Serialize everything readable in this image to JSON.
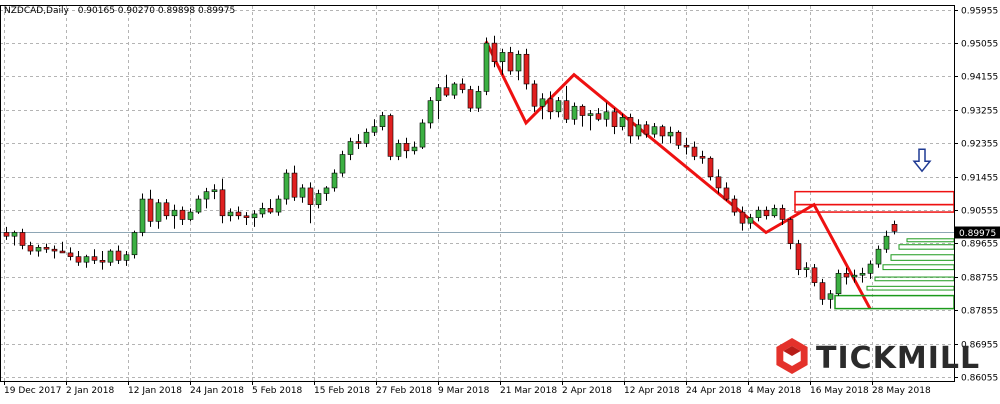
{
  "header": {
    "symbol": "NZDCAD,Daily",
    "ohlc": "0.90165 0.90270 0.89898 0.89975"
  },
  "logo": {
    "text": "TICKMILL"
  },
  "colors": {
    "bull": "#3cb043",
    "bear": "#e02020",
    "wick": "#000000",
    "grid": "#b4b4b4",
    "pattern": "#ee1111",
    "support": "#1c9a1c",
    "arrow": "#1f3a93",
    "price_line": "#8ea6b5"
  },
  "chart_data": {
    "type": "candlestick",
    "title": "",
    "ylim": [
      0.8595,
      0.9605
    ],
    "y_ticks": [
      "0.95955",
      "0.95055",
      "0.94155",
      "0.93255",
      "0.92355",
      "0.91455",
      "0.90555",
      "0.89655",
      "0.88755",
      "0.87855",
      "0.86955",
      "0.86055"
    ],
    "x_ticks": [
      "19 Dec 2017",
      "2 Jan 2018",
      "12 Jan 2018",
      "24 Jan 2018",
      "5 Feb 2018",
      "15 Feb 2018",
      "27 Feb 2018",
      "9 Mar 2018",
      "21 Mar 2018",
      "2 Apr 2018",
      "12 Apr 2018",
      "24 Apr 2018",
      "4 May 2018",
      "16 May 2018",
      "28 May 2018"
    ],
    "last_price": "0.89975",
    "candles": [
      {
        "o": 0.8995,
        "h": 0.901,
        "l": 0.8975,
        "c": 0.8985
      },
      {
        "o": 0.8985,
        "h": 0.9,
        "l": 0.896,
        "c": 0.8995
      },
      {
        "o": 0.8995,
        "h": 0.9005,
        "l": 0.895,
        "c": 0.896
      },
      {
        "o": 0.896,
        "h": 0.897,
        "l": 0.8935,
        "c": 0.8945
      },
      {
        "o": 0.8945,
        "h": 0.8962,
        "l": 0.893,
        "c": 0.8955
      },
      {
        "o": 0.8955,
        "h": 0.8965,
        "l": 0.894,
        "c": 0.895
      },
      {
        "o": 0.895,
        "h": 0.896,
        "l": 0.8925,
        "c": 0.8945
      },
      {
        "o": 0.8945,
        "h": 0.897,
        "l": 0.894,
        "c": 0.894
      },
      {
        "o": 0.894,
        "h": 0.8955,
        "l": 0.892,
        "c": 0.893
      },
      {
        "o": 0.893,
        "h": 0.8945,
        "l": 0.8905,
        "c": 0.8915
      },
      {
        "o": 0.8915,
        "h": 0.8935,
        "l": 0.89,
        "c": 0.893
      },
      {
        "o": 0.893,
        "h": 0.895,
        "l": 0.891,
        "c": 0.892
      },
      {
        "o": 0.892,
        "h": 0.8945,
        "l": 0.8895,
        "c": 0.8915
      },
      {
        "o": 0.8915,
        "h": 0.895,
        "l": 0.8905,
        "c": 0.8945
      },
      {
        "o": 0.8945,
        "h": 0.896,
        "l": 0.891,
        "c": 0.892
      },
      {
        "o": 0.892,
        "h": 0.8945,
        "l": 0.8905,
        "c": 0.8935
      },
      {
        "o": 0.8935,
        "h": 0.9,
        "l": 0.8925,
        "c": 0.8995
      },
      {
        "o": 0.8995,
        "h": 0.91,
        "l": 0.8985,
        "c": 0.9085
      },
      {
        "o": 0.9085,
        "h": 0.911,
        "l": 0.901,
        "c": 0.9025
      },
      {
        "o": 0.9025,
        "h": 0.9085,
        "l": 0.9005,
        "c": 0.9075
      },
      {
        "o": 0.9075,
        "h": 0.9085,
        "l": 0.903,
        "c": 0.904
      },
      {
        "o": 0.904,
        "h": 0.907,
        "l": 0.9005,
        "c": 0.9055
      },
      {
        "o": 0.9055,
        "h": 0.9065,
        "l": 0.9015,
        "c": 0.903
      },
      {
        "o": 0.903,
        "h": 0.906,
        "l": 0.9025,
        "c": 0.905
      },
      {
        "o": 0.905,
        "h": 0.9095,
        "l": 0.9045,
        "c": 0.9085
      },
      {
        "o": 0.9085,
        "h": 0.9115,
        "l": 0.906,
        "c": 0.9105
      },
      {
        "o": 0.9105,
        "h": 0.9125,
        "l": 0.9085,
        "c": 0.911
      },
      {
        "o": 0.911,
        "h": 0.914,
        "l": 0.902,
        "c": 0.904
      },
      {
        "o": 0.904,
        "h": 0.906,
        "l": 0.9025,
        "c": 0.905
      },
      {
        "o": 0.905,
        "h": 0.9065,
        "l": 0.903,
        "c": 0.904
      },
      {
        "o": 0.904,
        "h": 0.905,
        "l": 0.9015,
        "c": 0.9035
      },
      {
        "o": 0.9035,
        "h": 0.9055,
        "l": 0.901,
        "c": 0.9045
      },
      {
        "o": 0.9045,
        "h": 0.9075,
        "l": 0.9035,
        "c": 0.906
      },
      {
        "o": 0.906,
        "h": 0.9085,
        "l": 0.9045,
        "c": 0.905
      },
      {
        "o": 0.905,
        "h": 0.9095,
        "l": 0.904,
        "c": 0.9085
      },
      {
        "o": 0.9085,
        "h": 0.9165,
        "l": 0.907,
        "c": 0.9155
      },
      {
        "o": 0.9155,
        "h": 0.9175,
        "l": 0.908,
        "c": 0.909
      },
      {
        "o": 0.909,
        "h": 0.9125,
        "l": 0.9075,
        "c": 0.9115
      },
      {
        "o": 0.9115,
        "h": 0.913,
        "l": 0.902,
        "c": 0.907
      },
      {
        "o": 0.907,
        "h": 0.911,
        "l": 0.906,
        "c": 0.91
      },
      {
        "o": 0.91,
        "h": 0.912,
        "l": 0.908,
        "c": 0.9115
      },
      {
        "o": 0.9115,
        "h": 0.9165,
        "l": 0.9105,
        "c": 0.9155
      },
      {
        "o": 0.9155,
        "h": 0.9215,
        "l": 0.9145,
        "c": 0.9205
      },
      {
        "o": 0.9205,
        "h": 0.925,
        "l": 0.919,
        "c": 0.924
      },
      {
        "o": 0.924,
        "h": 0.926,
        "l": 0.922,
        "c": 0.9235
      },
      {
        "o": 0.9235,
        "h": 0.9275,
        "l": 0.9225,
        "c": 0.9265
      },
      {
        "o": 0.9265,
        "h": 0.93,
        "l": 0.9255,
        "c": 0.928
      },
      {
        "o": 0.928,
        "h": 0.932,
        "l": 0.927,
        "c": 0.931
      },
      {
        "o": 0.931,
        "h": 0.9315,
        "l": 0.919,
        "c": 0.92
      },
      {
        "o": 0.92,
        "h": 0.9245,
        "l": 0.919,
        "c": 0.9235
      },
      {
        "o": 0.9235,
        "h": 0.925,
        "l": 0.9195,
        "c": 0.9215
      },
      {
        "o": 0.9215,
        "h": 0.924,
        "l": 0.9205,
        "c": 0.9225
      },
      {
        "o": 0.9225,
        "h": 0.93,
        "l": 0.922,
        "c": 0.929
      },
      {
        "o": 0.929,
        "h": 0.936,
        "l": 0.9275,
        "c": 0.935
      },
      {
        "o": 0.935,
        "h": 0.9395,
        "l": 0.93,
        "c": 0.9385
      },
      {
        "o": 0.9385,
        "h": 0.942,
        "l": 0.936,
        "c": 0.9365
      },
      {
        "o": 0.9365,
        "h": 0.94,
        "l": 0.9355,
        "c": 0.9395
      },
      {
        "o": 0.9395,
        "h": 0.941,
        "l": 0.937,
        "c": 0.938
      },
      {
        "o": 0.938,
        "h": 0.939,
        "l": 0.932,
        "c": 0.933
      },
      {
        "o": 0.933,
        "h": 0.939,
        "l": 0.932,
        "c": 0.9375
      },
      {
        "o": 0.9375,
        "h": 0.952,
        "l": 0.9365,
        "c": 0.9505
      },
      {
        "o": 0.9505,
        "h": 0.9525,
        "l": 0.944,
        "c": 0.9455
      },
      {
        "o": 0.9455,
        "h": 0.949,
        "l": 0.942,
        "c": 0.948
      },
      {
        "o": 0.948,
        "h": 0.9495,
        "l": 0.942,
        "c": 0.943
      },
      {
        "o": 0.943,
        "h": 0.9485,
        "l": 0.9405,
        "c": 0.9475
      },
      {
        "o": 0.9475,
        "h": 0.949,
        "l": 0.938,
        "c": 0.9395
      },
      {
        "o": 0.9395,
        "h": 0.9405,
        "l": 0.932,
        "c": 0.9335
      },
      {
        "o": 0.9335,
        "h": 0.937,
        "l": 0.93,
        "c": 0.9355
      },
      {
        "o": 0.9355,
        "h": 0.9375,
        "l": 0.93,
        "c": 0.932
      },
      {
        "o": 0.932,
        "h": 0.936,
        "l": 0.9305,
        "c": 0.935
      },
      {
        "o": 0.935,
        "h": 0.939,
        "l": 0.929,
        "c": 0.93
      },
      {
        "o": 0.93,
        "h": 0.9345,
        "l": 0.9285,
        "c": 0.9335
      },
      {
        "o": 0.9335,
        "h": 0.934,
        "l": 0.928,
        "c": 0.931
      },
      {
        "o": 0.931,
        "h": 0.9325,
        "l": 0.927,
        "c": 0.9315
      },
      {
        "o": 0.9315,
        "h": 0.933,
        "l": 0.9295,
        "c": 0.93
      },
      {
        "o": 0.93,
        "h": 0.9345,
        "l": 0.928,
        "c": 0.932
      },
      {
        "o": 0.932,
        "h": 0.933,
        "l": 0.926,
        "c": 0.928
      },
      {
        "o": 0.928,
        "h": 0.9315,
        "l": 0.927,
        "c": 0.9305
      },
      {
        "o": 0.9305,
        "h": 0.9315,
        "l": 0.9235,
        "c": 0.9255
      },
      {
        "o": 0.9255,
        "h": 0.93,
        "l": 0.9245,
        "c": 0.9285
      },
      {
        "o": 0.9285,
        "h": 0.9295,
        "l": 0.925,
        "c": 0.926
      },
      {
        "o": 0.926,
        "h": 0.929,
        "l": 0.925,
        "c": 0.928
      },
      {
        "o": 0.928,
        "h": 0.9285,
        "l": 0.9235,
        "c": 0.9255
      },
      {
        "o": 0.9255,
        "h": 0.928,
        "l": 0.9235,
        "c": 0.9265
      },
      {
        "o": 0.9265,
        "h": 0.927,
        "l": 0.922,
        "c": 0.923
      },
      {
        "o": 0.923,
        "h": 0.925,
        "l": 0.9205,
        "c": 0.9225
      },
      {
        "o": 0.9225,
        "h": 0.924,
        "l": 0.919,
        "c": 0.92
      },
      {
        "o": 0.92,
        "h": 0.9215,
        "l": 0.918,
        "c": 0.9195
      },
      {
        "o": 0.9195,
        "h": 0.92,
        "l": 0.9135,
        "c": 0.9145
      },
      {
        "o": 0.9145,
        "h": 0.9165,
        "l": 0.91,
        "c": 0.9115
      },
      {
        "o": 0.9115,
        "h": 0.913,
        "l": 0.908,
        "c": 0.9085
      },
      {
        "o": 0.9085,
        "h": 0.9095,
        "l": 0.904,
        "c": 0.905
      },
      {
        "o": 0.905,
        "h": 0.9065,
        "l": 0.9,
        "c": 0.902
      },
      {
        "o": 0.902,
        "h": 0.9045,
        "l": 0.9005,
        "c": 0.9035
      },
      {
        "o": 0.9035,
        "h": 0.9065,
        "l": 0.9025,
        "c": 0.9055
      },
      {
        "o": 0.9055,
        "h": 0.9065,
        "l": 0.903,
        "c": 0.904
      },
      {
        "o": 0.904,
        "h": 0.907,
        "l": 0.9035,
        "c": 0.906
      },
      {
        "o": 0.906,
        "h": 0.907,
        "l": 0.9015,
        "c": 0.903
      },
      {
        "o": 0.903,
        "h": 0.9035,
        "l": 0.895,
        "c": 0.8965
      },
      {
        "o": 0.8965,
        "h": 0.8975,
        "l": 0.888,
        "c": 0.8895
      },
      {
        "o": 0.8895,
        "h": 0.8915,
        "l": 0.8875,
        "c": 0.89
      },
      {
        "o": 0.89,
        "h": 0.891,
        "l": 0.885,
        "c": 0.886
      },
      {
        "o": 0.886,
        "h": 0.887,
        "l": 0.88,
        "c": 0.8815
      },
      {
        "o": 0.8815,
        "h": 0.884,
        "l": 0.879,
        "c": 0.883
      },
      {
        "o": 0.883,
        "h": 0.8895,
        "l": 0.8825,
        "c": 0.8885
      },
      {
        "o": 0.8885,
        "h": 0.89,
        "l": 0.8855,
        "c": 0.8875
      },
      {
        "o": 0.8875,
        "h": 0.8895,
        "l": 0.886,
        "c": 0.888
      },
      {
        "o": 0.888,
        "h": 0.89,
        "l": 0.886,
        "c": 0.8885
      },
      {
        "o": 0.8885,
        "h": 0.892,
        "l": 0.887,
        "c": 0.891
      },
      {
        "o": 0.891,
        "h": 0.896,
        "l": 0.89,
        "c": 0.895
      },
      {
        "o": 0.895,
        "h": 0.9,
        "l": 0.894,
        "c": 0.8985
      },
      {
        "o": 0.9017,
        "h": 0.9027,
        "l": 0.899,
        "c": 0.8998
      }
    ],
    "annotations": {
      "zigzag_lines": [
        [
          [
            60,
            0.951
          ],
          [
            65,
            0.929
          ],
          [
            71,
            0.942
          ],
          [
            95,
            0.8995
          ],
          [
            101,
            0.907
          ],
          [
            108,
            0.879
          ]
        ]
      ],
      "resistance_zone": {
        "x_start": 99,
        "y_top": 0.9105,
        "y_mid": 0.907,
        "y_bottom": 0.905
      },
      "support_zone": {
        "x_start": 104,
        "y_top": 0.8825,
        "y_bottom": 0.879
      },
      "support_boxes": [
        {
          "x_start": 113,
          "y_top": 0.8978,
          "y_bottom": 0.897
        },
        {
          "x_start": 112,
          "y_top": 0.8962,
          "y_bottom": 0.895
        },
        {
          "x_start": 111,
          "y_top": 0.8935,
          "y_bottom": 0.892
        },
        {
          "x_start": 110,
          "y_top": 0.8908,
          "y_bottom": 0.8895
        },
        {
          "x_start": 109,
          "y_top": 0.8875,
          "y_bottom": 0.8865
        },
        {
          "x_start": 108,
          "y_top": 0.885,
          "y_bottom": 0.884
        }
      ],
      "down_arrow_at": {
        "x": 114.5,
        "y": 0.916
      }
    }
  }
}
